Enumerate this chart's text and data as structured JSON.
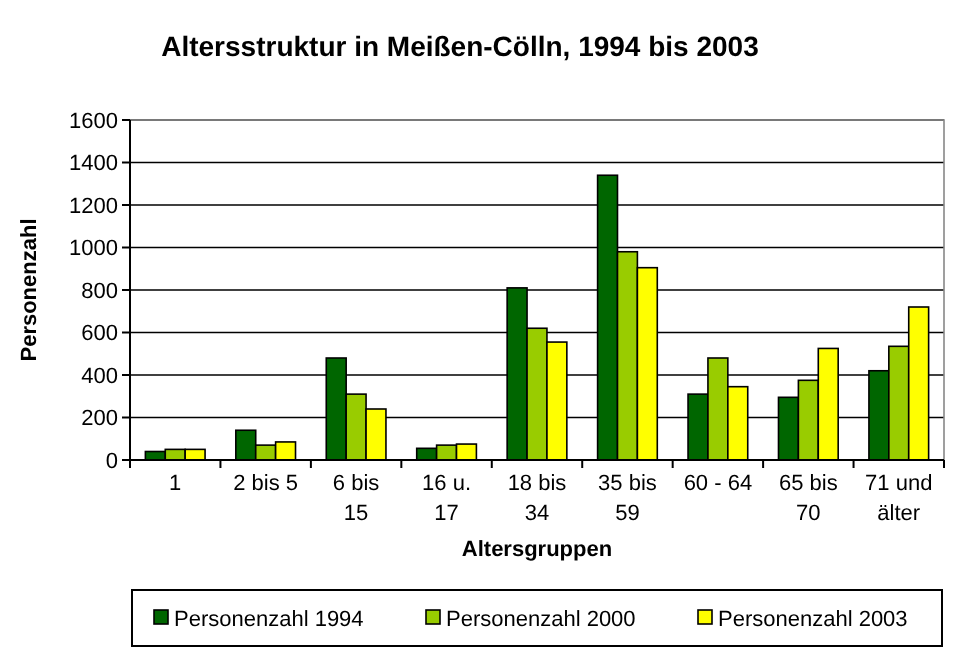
{
  "chart_data": {
    "type": "bar",
    "title": "Altersstruktur in Meißen-Cölln, 1994 bis 2003",
    "xlabel": "Altersgruppen",
    "ylabel": "Personenzahl",
    "categories": [
      "1",
      "2 bis 5",
      "6 bis 15",
      "16 u. 17",
      "18 bis 34",
      "35 bis 59",
      "60 - 64",
      "65 bis 70",
      "71 und älter"
    ],
    "series": [
      {
        "name": "Personenzahl 1994",
        "color": "#006600",
        "values": [
          40,
          140,
          480,
          55,
          810,
          1340,
          310,
          295,
          420
        ]
      },
      {
        "name": "Personenzahl 2000",
        "color": "#99cc00",
        "values": [
          50,
          70,
          310,
          70,
          620,
          980,
          480,
          375,
          535
        ]
      },
      {
        "name": "Personenzahl 2003",
        "color": "#ffff00",
        "values": [
          50,
          85,
          240,
          75,
          555,
          905,
          345,
          525,
          720
        ]
      }
    ],
    "ylim": [
      0,
      1600
    ],
    "yticks": [
      0,
      200,
      400,
      600,
      800,
      1000,
      1200,
      1400,
      1600
    ],
    "grid": "y",
    "legend": "bottom"
  }
}
